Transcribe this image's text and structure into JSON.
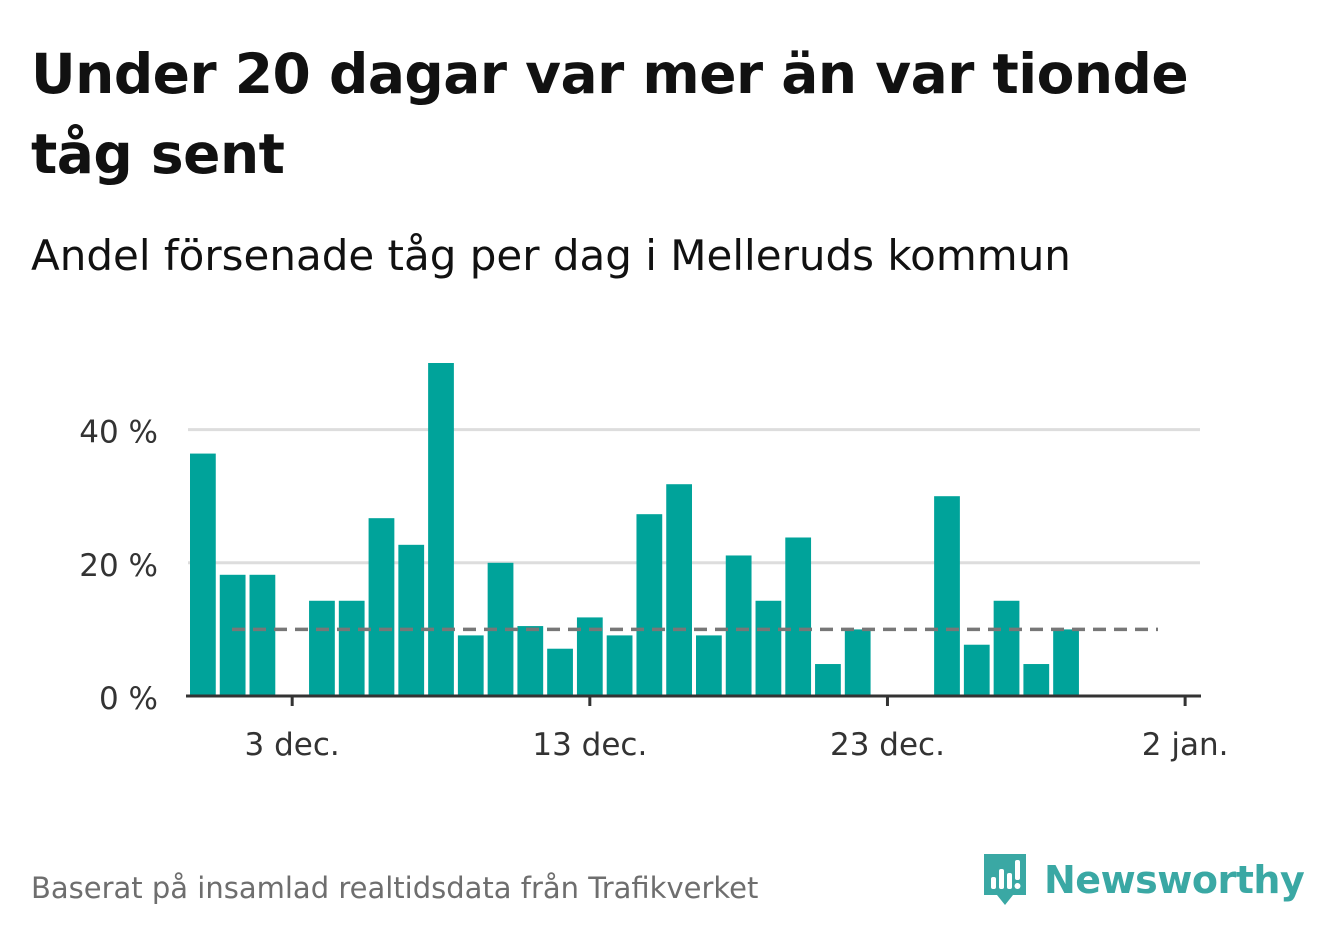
{
  "title": "Under 20 dagar var mer än var tionde tåg sent",
  "subtitle": "Andel försenade tåg per dag i Melleruds kommun",
  "source": "Baserat på insamlad realtidsdata från Trafikverket",
  "brand": {
    "name": "Newsworthy",
    "color": "#3aa8a4"
  },
  "chart_data": {
    "type": "bar",
    "title": "Andel försenade tåg per dag i Melleruds kommun",
    "xlabel": "",
    "ylabel": "",
    "x_dates": [
      "2023-11-30",
      "2023-12-01",
      "2023-12-02",
      "2023-12-03",
      "2023-12-04",
      "2023-12-05",
      "2023-12-06",
      "2023-12-07",
      "2023-12-08",
      "2023-12-09",
      "2023-12-10",
      "2023-12-11",
      "2023-12-12",
      "2023-12-13",
      "2023-12-14",
      "2023-12-15",
      "2023-12-16",
      "2023-12-17",
      "2023-12-18",
      "2023-12-19",
      "2023-12-20",
      "2023-12-21",
      "2023-12-22",
      "2023-12-23",
      "2023-12-24",
      "2023-12-25",
      "2023-12-26",
      "2023-12-27",
      "2023-12-28",
      "2023-12-29",
      "2023-12-30",
      "2023-12-31",
      "2024-01-01",
      "2024-01-02",
      "2024-01-03"
    ],
    "values": [
      36.4,
      18.2,
      18.2,
      null,
      14.3,
      14.3,
      26.7,
      22.7,
      50.0,
      9.1,
      20.0,
      10.5,
      7.1,
      11.8,
      9.1,
      27.3,
      31.8,
      9.1,
      21.1,
      14.3,
      23.8,
      4.8,
      10.0,
      null,
      null,
      30.0,
      7.7,
      14.3,
      4.8,
      10.0,
      null,
      null,
      null,
      null,
      null
    ],
    "xlim": [
      "2023-11-30",
      "2024-01-03"
    ],
    "x_ticks": [
      "2023-12-03",
      "2023-12-13",
      "2023-12-23",
      "2024-01-02"
    ],
    "x_tick_labels": [
      "3 dec.",
      "13 dec.",
      "23 dec.",
      "2 jan."
    ],
    "ylim": [
      0,
      50
    ],
    "y_ticks": [
      0,
      20,
      40
    ],
    "y_tick_labels": [
      "0 %",
      "20 %",
      "40 %"
    ],
    "reference_line": {
      "value": 10,
      "style": "dashed"
    },
    "grid": true,
    "bar_color": "#00a39a",
    "grid_color": "#dddddd",
    "axis_color": "#333333",
    "reference_color": "#777777"
  }
}
